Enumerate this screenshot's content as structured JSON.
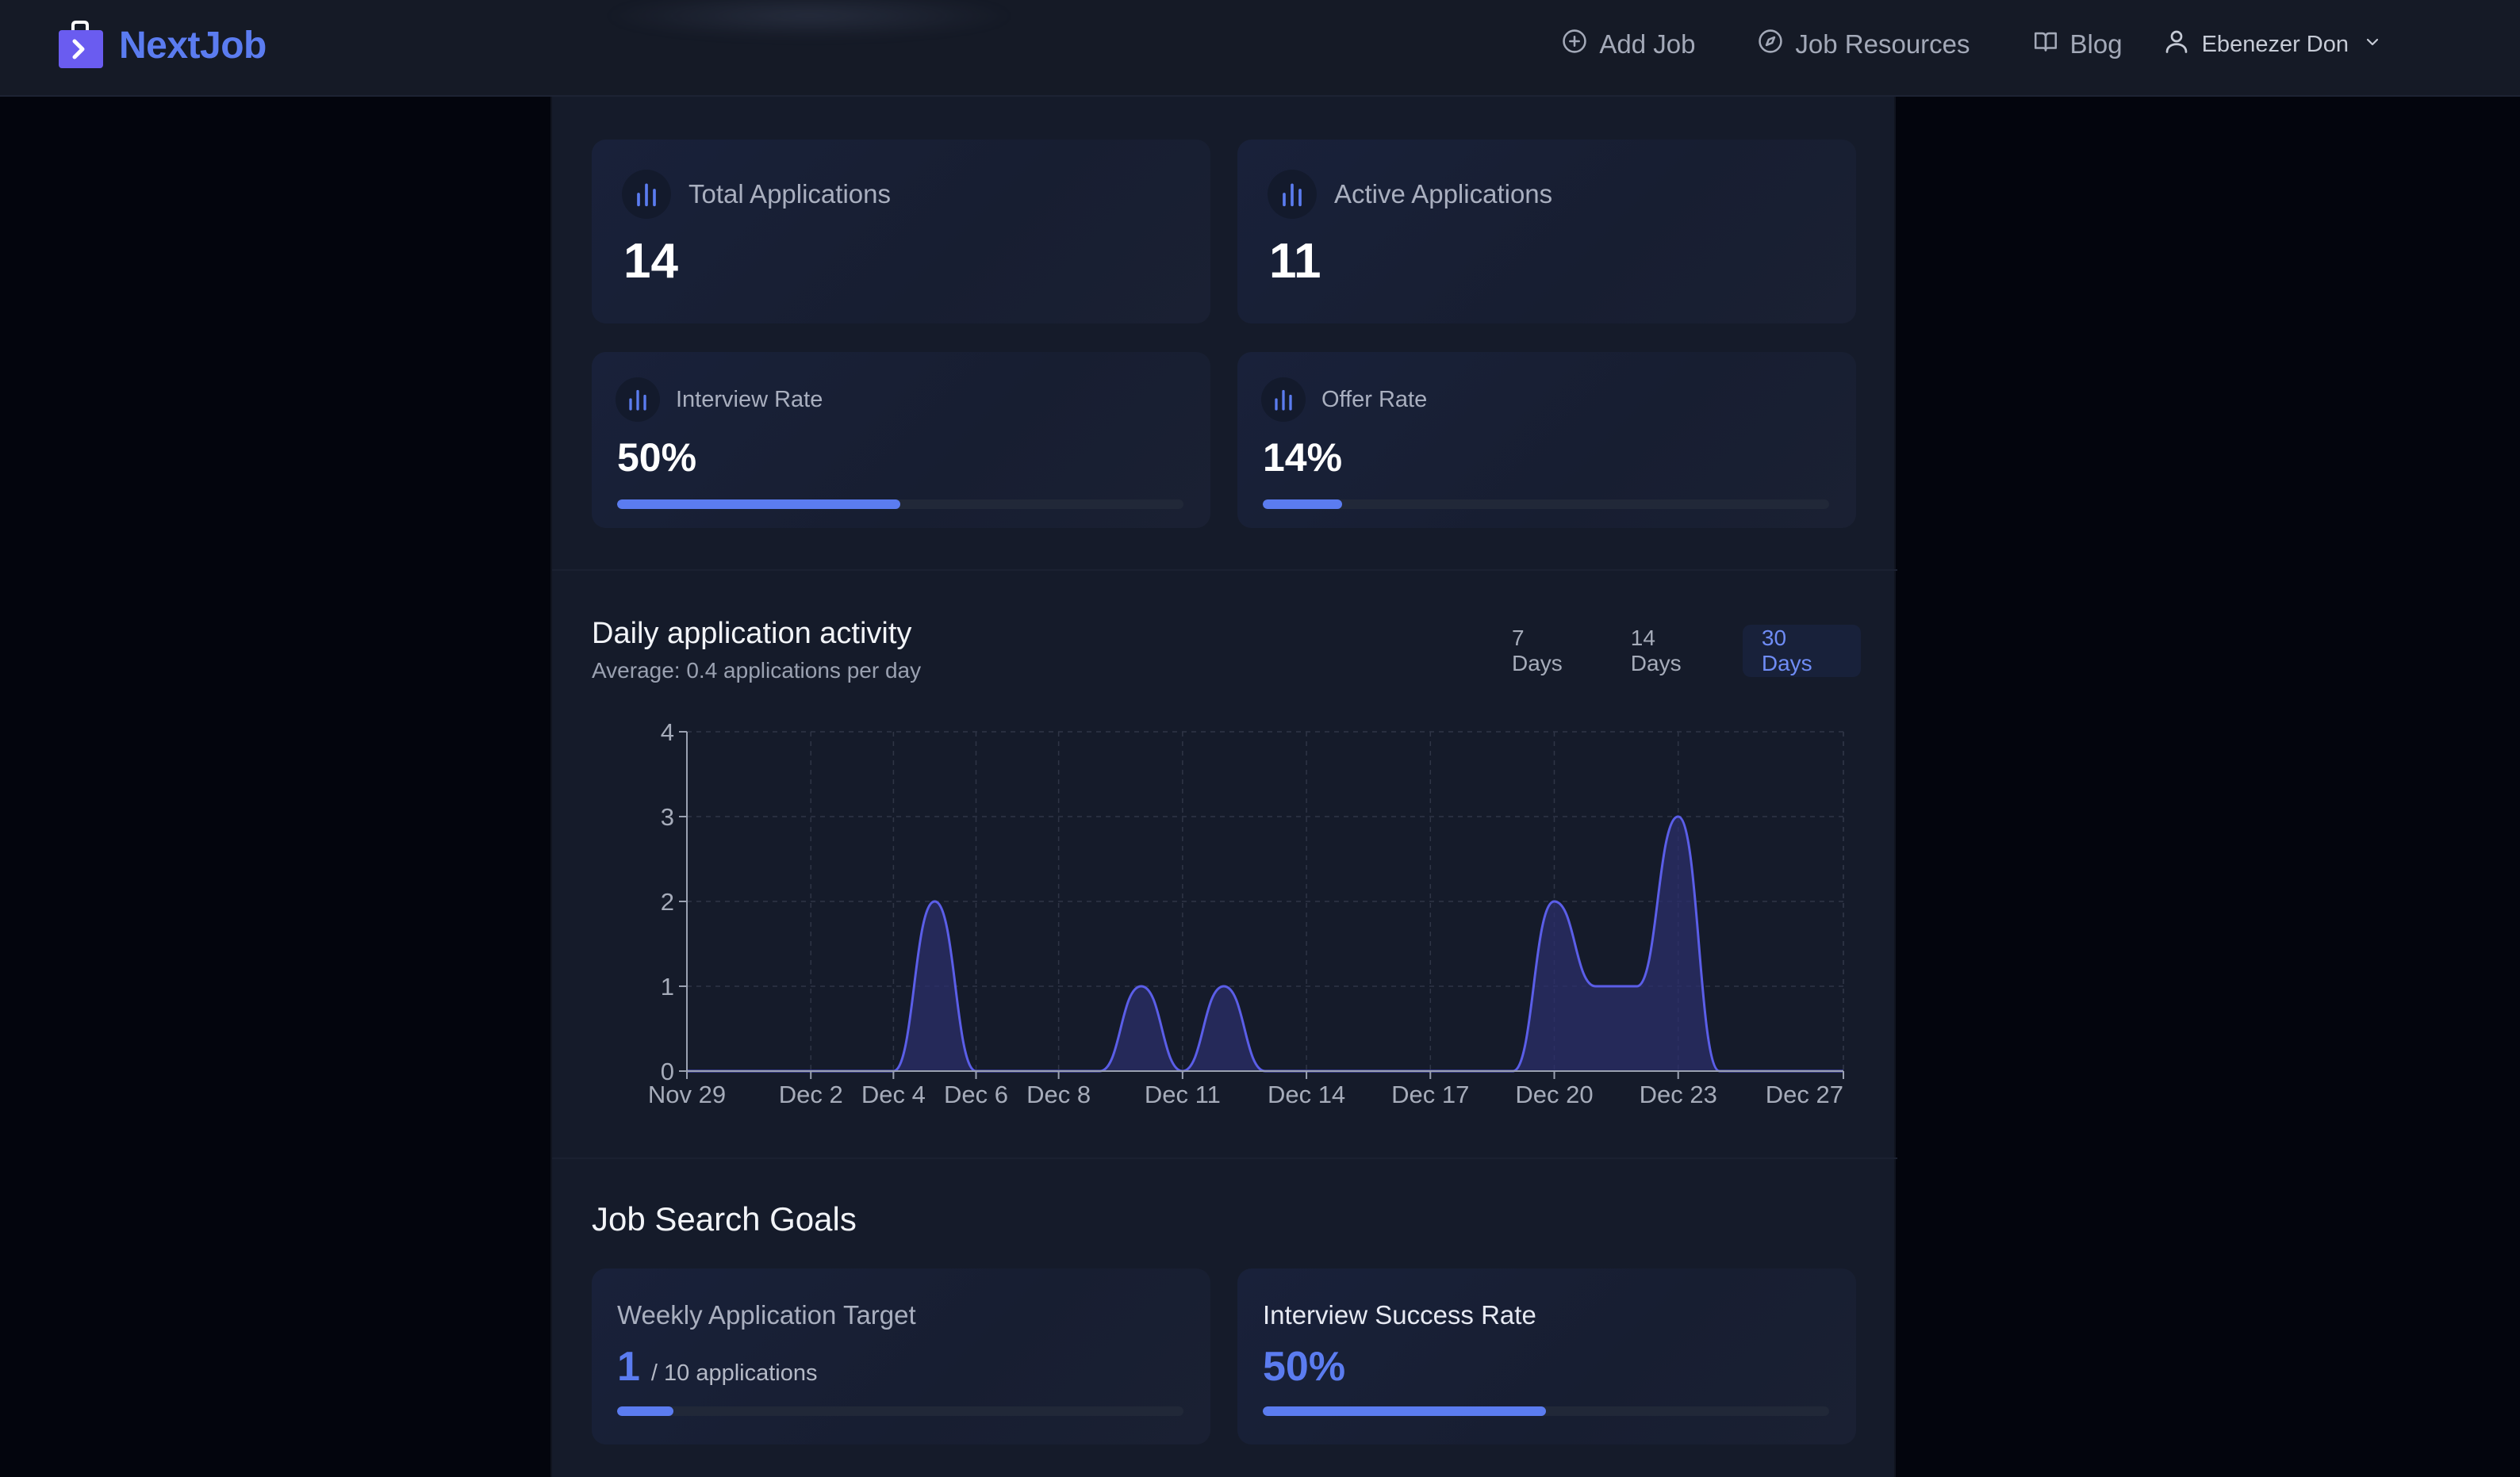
{
  "app": {
    "name": "NextJob"
  },
  "nav": {
    "items": [
      {
        "label": "Add Job",
        "icon": "plus-circle-icon"
      },
      {
        "label": "Job Resources",
        "icon": "compass-icon"
      },
      {
        "label": "Blog",
        "icon": "book-icon"
      }
    ],
    "user": {
      "name": "Ebenezer Don",
      "icon": "user-icon"
    }
  },
  "stats": [
    {
      "label": "Total Applications",
      "value": "14",
      "icon": "bar-chart-icon"
    },
    {
      "label": "Active Applications",
      "value": "11",
      "icon": "bar-chart-icon"
    },
    {
      "label": "Interview Rate",
      "value": "50%",
      "progress": 0.5,
      "icon": "bar-chart-icon"
    },
    {
      "label": "Offer Rate",
      "value": "14%",
      "progress": 0.14,
      "icon": "bar-chart-icon"
    }
  ],
  "activity": {
    "title": "Daily application activity",
    "subtitle": "Average: 0.4 applications per day",
    "ranges": [
      "7 Days",
      "14 Days",
      "30 Days"
    ],
    "active_range": "30 Days"
  },
  "chart_data": {
    "type": "area",
    "title": "Daily application activity",
    "x": [
      "Nov 29",
      "Nov 30",
      "Dec 1",
      "Dec 2",
      "Dec 3",
      "Dec 4",
      "Dec 5",
      "Dec 6",
      "Dec 7",
      "Dec 8",
      "Dec 9",
      "Dec 10",
      "Dec 11",
      "Dec 12",
      "Dec 13",
      "Dec 14",
      "Dec 15",
      "Dec 16",
      "Dec 17",
      "Dec 18",
      "Dec 19",
      "Dec 20",
      "Dec 21",
      "Dec 22",
      "Dec 23",
      "Dec 24",
      "Dec 25",
      "Dec 26",
      "Dec 27"
    ],
    "values": [
      0,
      0,
      0,
      0,
      0,
      0,
      2,
      0,
      0,
      0,
      0,
      1,
      0,
      1,
      0,
      0,
      0,
      0,
      0,
      0,
      0,
      2,
      1,
      1,
      3,
      0,
      0,
      0,
      0
    ],
    "x_ticks": [
      "Nov 29",
      "Dec 2",
      "Dec 4",
      "Dec 6",
      "Dec 8",
      "Dec 11",
      "Dec 14",
      "Dec 17",
      "Dec 20",
      "Dec 23",
      "Dec 27"
    ],
    "y_ticks": [
      "0",
      "1",
      "2",
      "3",
      "4"
    ],
    "ylim": [
      0,
      4
    ],
    "grid": true,
    "colors": {
      "line": "#5b5ee8",
      "fill": "#2c2f6e"
    }
  },
  "goals": {
    "title": "Job Search Goals",
    "weekly": {
      "label": "Weekly Application Target",
      "value": "1",
      "suffix": "/ 10 applications",
      "progress": 0.1
    },
    "interview": {
      "label": "Interview Success Rate",
      "value": "50%",
      "progress": 0.5
    }
  },
  "colors": {
    "accent": "#5b7cf0",
    "background": "#03050d",
    "panel": "#151b2a",
    "navbar": "#151a26"
  }
}
